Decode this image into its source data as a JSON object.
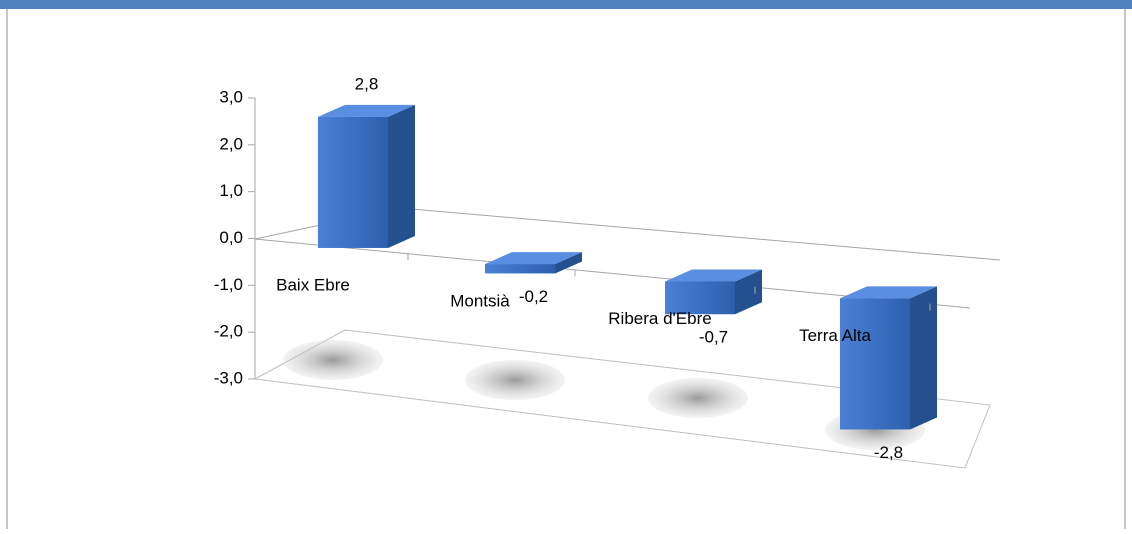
{
  "chart_data": {
    "type": "bar3d",
    "categories": [
      "Baix Ebre",
      "Montsià",
      "Ribera d'Ebre",
      "Terra Alta"
    ],
    "values": [
      2.8,
      -0.2,
      -0.7,
      -2.8
    ],
    "value_labels": [
      "2,8",
      "-0,2",
      "-0,7",
      "-2,8"
    ],
    "color": "#3b6fc3",
    "ylim": [
      -3,
      3
    ],
    "yticks": [
      {
        "value": 3,
        "label": "3,0"
      },
      {
        "value": 2,
        "label": "2,0"
      },
      {
        "value": 1,
        "label": "1,0"
      },
      {
        "value": 0,
        "label": "0,0"
      },
      {
        "value": -1,
        "label": "-1,0"
      },
      {
        "value": -2,
        "label": "-2,0"
      },
      {
        "value": -3,
        "label": "-3,0"
      }
    ]
  }
}
